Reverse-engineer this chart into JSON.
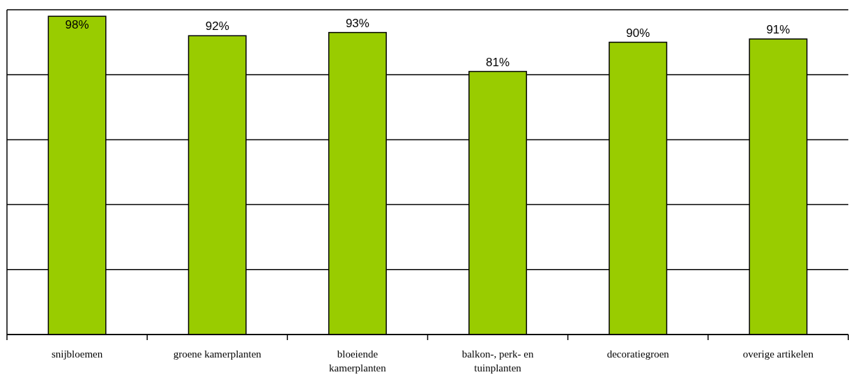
{
  "chart_data": {
    "type": "bar",
    "categories": [
      "snijbloemen",
      "groene kamerplanten",
      "bloeiende kamerplanten",
      "balkon-, perk- en tuinplanten",
      "decoratiegroen",
      "overige artikelen"
    ],
    "values": [
      98,
      92,
      93,
      81,
      90,
      91
    ],
    "value_labels": [
      "98%",
      "92%",
      "93%",
      "81%",
      "90%",
      "91%"
    ],
    "color": "#99cc00",
    "ylim": [
      0,
      100
    ],
    "yticks": [
      {
        "value": 0,
        "label": null
      },
      {
        "value": 20,
        "label": null
      },
      {
        "value": 40,
        "label": null
      },
      {
        "value": 60,
        "label": null
      },
      {
        "value": 80,
        "label": null
      },
      {
        "value": 100,
        "label": null
      }
    ],
    "tick_labels": "x",
    "grid": "y"
  }
}
